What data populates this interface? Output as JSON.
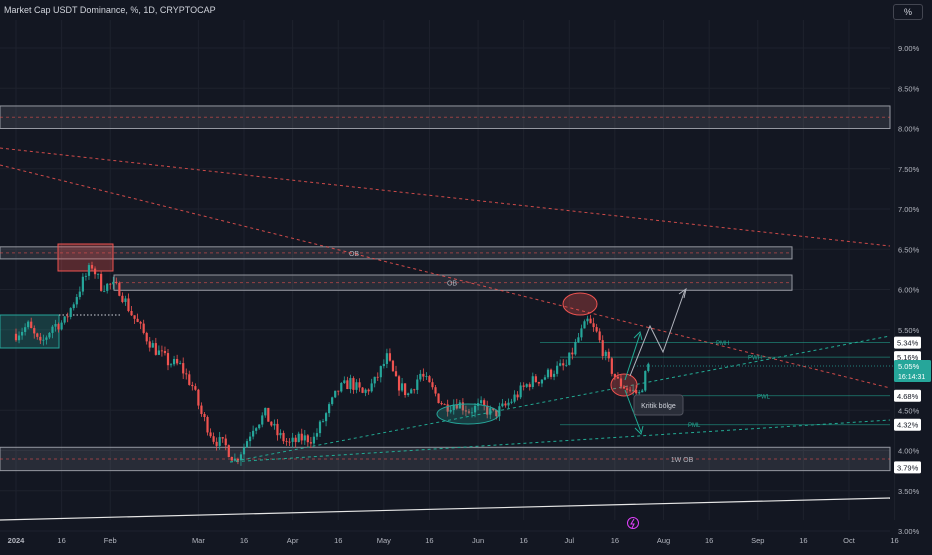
{
  "header": {
    "title": "Market Cap USDT Dominance, %, 1D, CRYPTOCAP",
    "scale_button": "%"
  },
  "colors": {
    "background": "#131722",
    "up": "#26a69a",
    "down": "#ef5350",
    "grid": "#1e222d",
    "zone": "#787b86",
    "teal": "#22ab94",
    "price_badge": "#26a69a"
  },
  "chart_data": {
    "type": "candlestick",
    "title": "Market Cap USDT Dominance, %, 1D, CRYPTOCAP",
    "y_axis": {
      "ticks": [
        "9.00%",
        "8.50%",
        "8.00%",
        "7.50%",
        "7.00%",
        "6.50%",
        "6.00%",
        "5.50%",
        "4.50%",
        "4.00%",
        "3.50%",
        "3.00%"
      ],
      "range": [
        3.0,
        9.4
      ]
    },
    "x_axis": {
      "ticks": [
        "2024",
        "16",
        "Feb",
        "Mar",
        "16",
        "Apr",
        "16",
        "May",
        "16",
        "Jun",
        "16",
        "Jul",
        "16",
        "Aug",
        "16",
        "Sep",
        "16",
        "Oct",
        "16"
      ],
      "range": [
        "2023-12-31",
        "2024-10-20"
      ]
    },
    "ohlc_path": [
      {
        "date": "2024-01-01",
        "close": 5.45
      },
      {
        "date": "2024-01-05",
        "close": 5.55
      },
      {
        "date": "2024-01-09",
        "close": 5.3
      },
      {
        "date": "2024-01-13",
        "close": 5.55
      },
      {
        "date": "2024-01-17",
        "close": 5.6
      },
      {
        "date": "2024-01-20",
        "close": 5.85
      },
      {
        "date": "2024-01-23",
        "close": 6.1
      },
      {
        "date": "2024-01-26",
        "close": 6.3
      },
      {
        "date": "2024-01-29",
        "close": 6.05
      },
      {
        "date": "2024-02-01",
        "close": 6.05
      },
      {
        "date": "2024-02-04",
        "close": 6.0
      },
      {
        "date": "2024-02-08",
        "close": 5.7
      },
      {
        "date": "2024-02-12",
        "close": 5.45
      },
      {
        "date": "2024-02-16",
        "close": 5.25
      },
      {
        "date": "2024-02-20",
        "close": 5.1
      },
      {
        "date": "2024-02-24",
        "close": 5.05
      },
      {
        "date": "2024-02-28",
        "close": 4.8
      },
      {
        "date": "2024-03-02",
        "close": 4.45
      },
      {
        "date": "2024-03-06",
        "close": 4.15
      },
      {
        "date": "2024-03-10",
        "close": 4.05
      },
      {
        "date": "2024-03-13",
        "close": 3.88
      },
      {
        "date": "2024-03-16",
        "close": 4.05
      },
      {
        "date": "2024-03-19",
        "close": 4.3
      },
      {
        "date": "2024-03-23",
        "close": 4.45
      },
      {
        "date": "2024-03-27",
        "close": 4.2
      },
      {
        "date": "2024-03-31",
        "close": 4.08
      },
      {
        "date": "2024-04-04",
        "close": 4.15
      },
      {
        "date": "2024-04-08",
        "close": 4.15
      },
      {
        "date": "2024-04-12",
        "close": 4.45
      },
      {
        "date": "2024-04-16",
        "close": 4.75
      },
      {
        "date": "2024-04-20",
        "close": 4.85
      },
      {
        "date": "2024-04-24",
        "close": 4.7
      },
      {
        "date": "2024-04-28",
        "close": 4.85
      },
      {
        "date": "2024-05-02",
        "close": 5.15
      },
      {
        "date": "2024-05-05",
        "close": 4.85
      },
      {
        "date": "2024-05-09",
        "close": 4.7
      },
      {
        "date": "2024-05-13",
        "close": 4.95
      },
      {
        "date": "2024-05-17",
        "close": 4.75
      },
      {
        "date": "2024-05-21",
        "close": 4.55
      },
      {
        "date": "2024-05-25",
        "close": 4.6
      },
      {
        "date": "2024-05-29",
        "close": 4.5
      },
      {
        "date": "2024-06-02",
        "close": 4.55
      },
      {
        "date": "2024-06-06",
        "close": 4.45
      },
      {
        "date": "2024-06-10",
        "close": 4.55
      },
      {
        "date": "2024-06-14",
        "close": 4.7
      },
      {
        "date": "2024-06-18",
        "close": 4.85
      },
      {
        "date": "2024-06-22",
        "close": 4.9
      },
      {
        "date": "2024-06-26",
        "close": 5.0
      },
      {
        "date": "2024-06-30",
        "close": 5.05
      },
      {
        "date": "2024-07-04",
        "close": 5.4
      },
      {
        "date": "2024-07-07",
        "close": 5.6
      },
      {
        "date": "2024-07-10",
        "close": 5.45
      },
      {
        "date": "2024-07-13",
        "close": 5.15
      },
      {
        "date": "2024-07-17",
        "close": 4.85
      },
      {
        "date": "2024-07-21",
        "close": 4.75
      },
      {
        "date": "2024-07-24",
        "close": 4.7
      },
      {
        "date": "2024-07-27",
        "close": 5.05
      }
    ],
    "zones": [
      {
        "from": 8.0,
        "to": 8.28,
        "label": ""
      },
      {
        "from": 6.38,
        "to": 6.53,
        "label": "OB"
      },
      {
        "from": 5.99,
        "to": 6.18,
        "label": "OB"
      },
      {
        "from": 3.75,
        "to": 4.04,
        "label": "1W OB"
      }
    ],
    "levels": [
      {
        "label": "PMH",
        "value": 5.34
      },
      {
        "label": "PWH",
        "value": 5.16
      },
      {
        "label": "PWL",
        "value": 4.68
      },
      {
        "label": "PML",
        "value": 4.32
      }
    ],
    "price_labels": [
      "5.34%",
      "5.16%",
      "5.05%",
      "4.68%",
      "4.32%",
      "3.79%"
    ],
    "current_price": {
      "value": 5.05,
      "label": "5.05%",
      "countdown": "16:14:31"
    },
    "annotations": {
      "critical_zone": "Kritik bölge"
    }
  }
}
